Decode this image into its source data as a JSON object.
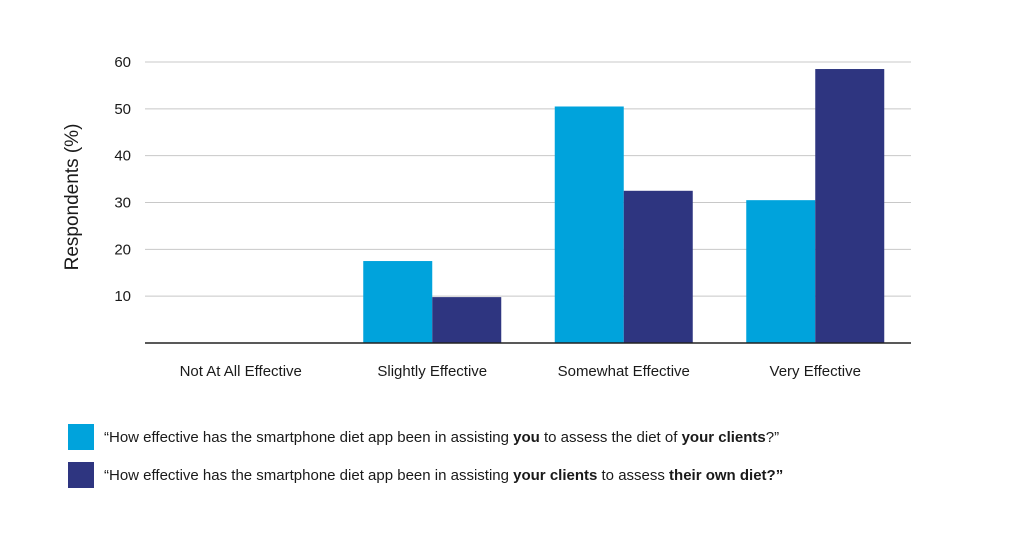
{
  "chart_data": {
    "type": "bar",
    "categories": [
      "Not At All Effective",
      "Slightly Effective",
      "Somewhat Effective",
      "Very Effective"
    ],
    "series": [
      {
        "name_parts": [
          {
            "text": "“How effective has the smartphone diet app been in assisting ",
            "bold": false
          },
          {
            "text": "you",
            "bold": true
          },
          {
            "text": " to assess the diet of ",
            "bold": false
          },
          {
            "text": "your clients",
            "bold": true
          },
          {
            "text": "?”",
            "bold": false
          }
        ],
        "color": "#00a3dc",
        "values": [
          0,
          17.5,
          50.5,
          30.5
        ]
      },
      {
        "name_parts": [
          {
            "text": "“How effective has the smartphone diet app been in assisting ",
            "bold": false
          },
          {
            "text": "your clients",
            "bold": true
          },
          {
            "text": " to assess ",
            "bold": false
          },
          {
            "text": "their own diet?”",
            "bold": true
          }
        ],
        "color": "#2e3580",
        "values": [
          0,
          9.8,
          32.5,
          58.5
        ]
      }
    ],
    "ylabel": "Respondents (%)",
    "ylim": [
      0,
      60
    ],
    "yticks": [
      "10",
      "20",
      "30",
      "40",
      "50",
      "60"
    ],
    "grid": true,
    "legend_placement": "bottom"
  }
}
